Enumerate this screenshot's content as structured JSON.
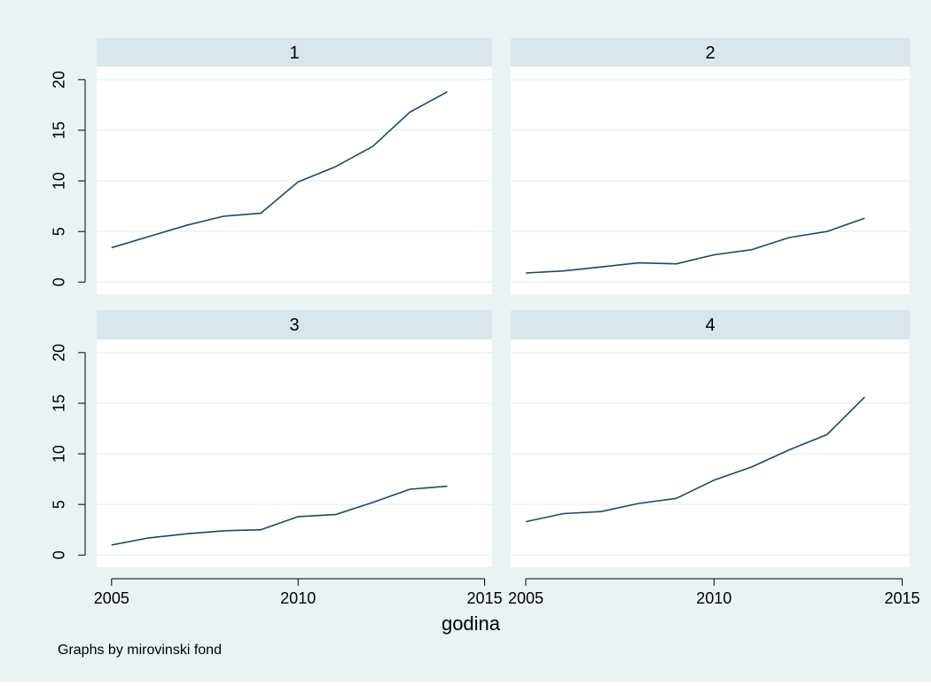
{
  "colors": {
    "page_background": "#eaf2f3",
    "plot_background": "#ffffff",
    "strip_background": "#d9e6eb",
    "gridline": "#eaf2f3",
    "line": "#1a476f",
    "axis": "#000000"
  },
  "chart_data": {
    "type": "line",
    "layout": "2x2 facets",
    "xlabel": "godina",
    "note": "Graphs by mirovinski fond",
    "x_ticks": [
      2005,
      2010,
      2015
    ],
    "y_ticks": [
      0,
      5,
      10,
      15,
      20
    ],
    "x_range": [
      2004.6,
      2015.2
    ],
    "y_range": [
      -1.2,
      21.3
    ],
    "grid": true,
    "x": [
      2005,
      2006,
      2007,
      2008,
      2009,
      2010,
      2011,
      2012,
      2013,
      2014
    ],
    "panels": [
      {
        "label": "1",
        "values": [
          3.4,
          4.5,
          5.6,
          6.5,
          6.8,
          9.9,
          11.4,
          13.4,
          16.8,
          18.8
        ]
      },
      {
        "label": "2",
        "values": [
          0.9,
          1.1,
          1.5,
          1.9,
          1.8,
          2.7,
          3.2,
          4.4,
          5.0,
          6.3
        ]
      },
      {
        "label": "3",
        "values": [
          1.0,
          1.7,
          2.1,
          2.4,
          2.5,
          3.8,
          4.0,
          5.2,
          6.5,
          6.8
        ]
      },
      {
        "label": "4",
        "values": [
          3.3,
          4.1,
          4.3,
          5.1,
          5.6,
          7.4,
          8.7,
          10.4,
          11.9,
          15.6
        ]
      }
    ]
  }
}
